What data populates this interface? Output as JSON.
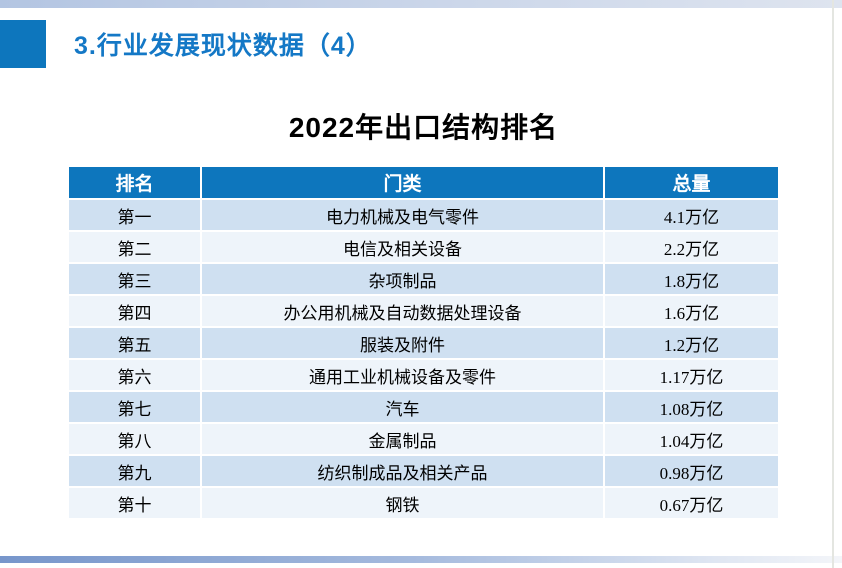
{
  "slide": {
    "header_title": "3.行业发展现状数据（4）",
    "table_title": "2022年出口结构排名"
  },
  "table": {
    "headers": [
      "排名",
      "门类",
      "总量"
    ],
    "rows": [
      [
        "第一",
        "电力机械及电气零件",
        "4.1万亿"
      ],
      [
        "第二",
        "电信及相关设备",
        "2.2万亿"
      ],
      [
        "第三",
        "杂项制品",
        "1.8万亿"
      ],
      [
        "第四",
        "办公用机械及自动数据处理设备",
        "1.6万亿"
      ],
      [
        "第五",
        "服装及附件",
        "1.2万亿"
      ],
      [
        "第六",
        "通用工业机械设备及零件",
        "1.17万亿"
      ],
      [
        "第七",
        "汽车",
        "1.08万亿"
      ],
      [
        "第八",
        "金属制品",
        "1.04万亿"
      ],
      [
        "第九",
        "纺织制成品及相关产品",
        "0.98万亿"
      ],
      [
        "第十",
        "钢铁",
        "0.67万亿"
      ]
    ]
  },
  "chart_data": {
    "type": "table",
    "title": "2022年出口结构排名",
    "columns": [
      "排名",
      "门类",
      "总量"
    ],
    "categories": [
      "电力机械及电气零件",
      "电信及相关设备",
      "杂项制品",
      "办公用机械及自动数据处理设备",
      "服装及附件",
      "通用工业机械设备及零件",
      "汽车",
      "金属制品",
      "纺织制成品及相关产品",
      "钢铁"
    ],
    "values_wanyi": [
      4.1,
      2.2,
      1.8,
      1.6,
      1.2,
      1.17,
      1.08,
      1.04,
      0.98,
      0.67
    ],
    "unit": "万亿"
  },
  "colors": {
    "accent_blue": "#0d76bd",
    "title_blue": "#1478c6",
    "row_light_blue": "#cfe0f1",
    "row_near_white": "#eef4fa",
    "top_strip_left": "#b3c5e2",
    "top_strip_right": "#dee4ef",
    "bottom_bar_left": "#7796cb",
    "bottom_bar_right": "#f3f5f9"
  }
}
